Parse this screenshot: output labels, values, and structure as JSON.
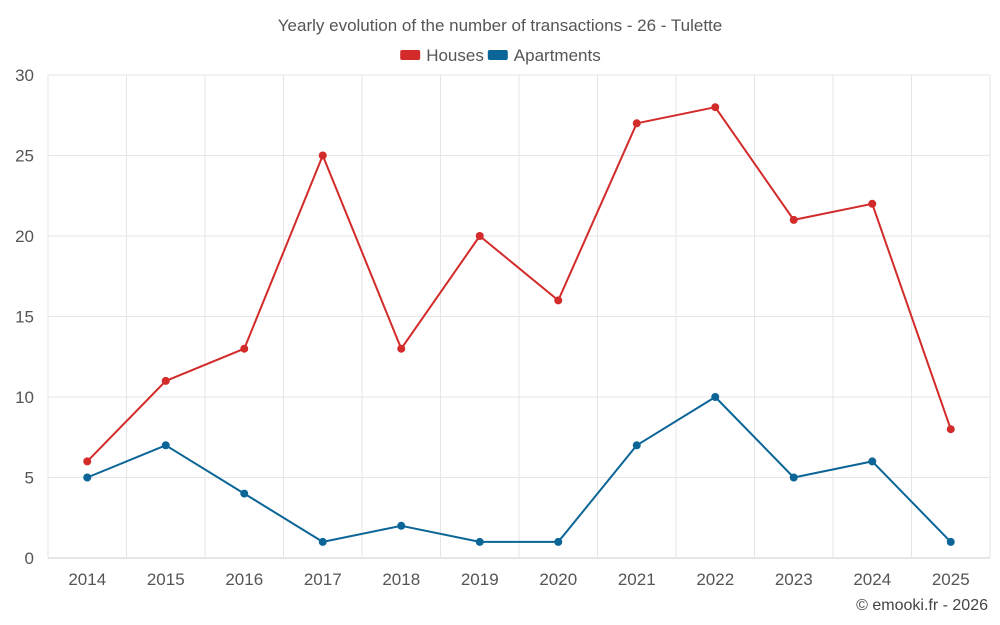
{
  "chart_data": {
    "type": "line",
    "title": "Yearly evolution of the number of transactions - 26 - Tulette",
    "categories": [
      "2014",
      "2015",
      "2016",
      "2017",
      "2018",
      "2019",
      "2020",
      "2021",
      "2022",
      "2023",
      "2024",
      "2025"
    ],
    "series": [
      {
        "name": "Houses",
        "color": "#d32a2a",
        "values": [
          6,
          11,
          13,
          25,
          13,
          20,
          16,
          27,
          28,
          21,
          22,
          8
        ]
      },
      {
        "name": "Apartments",
        "color": "#0b6597",
        "values": [
          5,
          7,
          4,
          1,
          2,
          1,
          1,
          7,
          10,
          5,
          6,
          1
        ]
      }
    ],
    "ylim": [
      0,
      30
    ],
    "yticks": [
      0,
      5,
      10,
      15,
      20,
      25,
      30
    ],
    "grid": true,
    "legend": "top-center",
    "xlabel": "",
    "ylabel": ""
  },
  "credit": "© emooki.fr - 2026"
}
